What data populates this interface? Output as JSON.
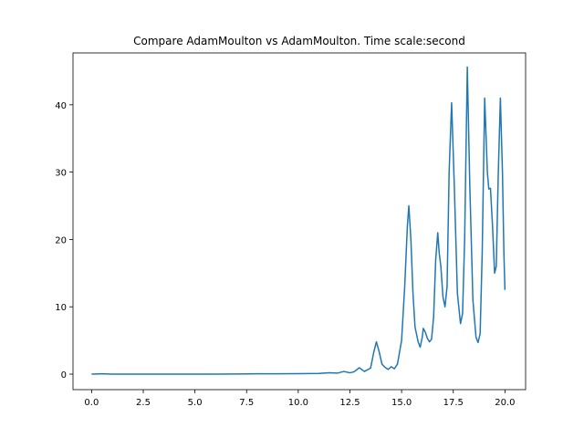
{
  "chart_data": {
    "type": "line",
    "title": "Compare AdamMoulton vs AdamMoulton. Time scale:second",
    "xlabel": "",
    "ylabel": "",
    "xlim": [
      -0.9,
      21.0
    ],
    "ylim": [
      -2.3,
      47.7
    ],
    "x_ticks": [
      0.0,
      2.5,
      5.0,
      7.5,
      10.0,
      12.5,
      15.0,
      17.5,
      20.0
    ],
    "x_tick_labels": [
      "0.0",
      "2.5",
      "5.0",
      "7.5",
      "10.0",
      "12.5",
      "15.0",
      "17.5",
      "20.0"
    ],
    "y_ticks": [
      0,
      10,
      20,
      30,
      40
    ],
    "y_tick_labels": [
      "0",
      "10",
      "20",
      "30",
      "40"
    ],
    "grid": false,
    "series": [
      {
        "color": "#1f77b4",
        "points": [
          [
            0.0,
            0.0
          ],
          [
            0.5,
            0.05
          ],
          [
            1.0,
            0.0
          ],
          [
            2.0,
            0.0
          ],
          [
            3.0,
            0.0
          ],
          [
            4.0,
            0.0
          ],
          [
            5.0,
            0.0
          ],
          [
            6.0,
            0.0
          ],
          [
            7.0,
            0.02
          ],
          [
            8.0,
            0.05
          ],
          [
            9.0,
            0.05
          ],
          [
            10.0,
            0.08
          ],
          [
            11.0,
            0.1
          ],
          [
            11.5,
            0.2
          ],
          [
            11.9,
            0.15
          ],
          [
            12.2,
            0.4
          ],
          [
            12.5,
            0.2
          ],
          [
            12.7,
            0.35
          ],
          [
            12.95,
            0.95
          ],
          [
            13.2,
            0.4
          ],
          [
            13.5,
            0.9
          ],
          [
            13.65,
            3.2
          ],
          [
            13.78,
            4.8
          ],
          [
            13.9,
            3.5
          ],
          [
            14.05,
            1.5
          ],
          [
            14.2,
            1.0
          ],
          [
            14.35,
            0.7
          ],
          [
            14.5,
            1.1
          ],
          [
            14.65,
            0.8
          ],
          [
            14.8,
            1.5
          ],
          [
            15.0,
            5.0
          ],
          [
            15.15,
            13.0
          ],
          [
            15.28,
            22.0
          ],
          [
            15.35,
            25.0
          ],
          [
            15.45,
            20.0
          ],
          [
            15.55,
            12.0
          ],
          [
            15.65,
            7.0
          ],
          [
            15.8,
            4.8
          ],
          [
            15.9,
            4.0
          ],
          [
            16.0,
            5.5
          ],
          [
            16.05,
            6.8
          ],
          [
            16.15,
            6.2
          ],
          [
            16.25,
            5.3
          ],
          [
            16.35,
            4.8
          ],
          [
            16.45,
            5.2
          ],
          [
            16.55,
            8.5
          ],
          [
            16.65,
            17.0
          ],
          [
            16.75,
            21.0
          ],
          [
            16.82,
            18.0
          ],
          [
            16.9,
            16.0
          ],
          [
            17.0,
            11.5
          ],
          [
            17.1,
            10.0
          ],
          [
            17.2,
            13.0
          ],
          [
            17.3,
            30.0
          ],
          [
            17.42,
            40.3
          ],
          [
            17.55,
            28.0
          ],
          [
            17.7,
            12.0
          ],
          [
            17.85,
            7.5
          ],
          [
            17.95,
            9.0
          ],
          [
            18.05,
            20.0
          ],
          [
            18.18,
            45.6
          ],
          [
            18.3,
            28.0
          ],
          [
            18.45,
            11.0
          ],
          [
            18.6,
            5.5
          ],
          [
            18.7,
            4.7
          ],
          [
            18.8,
            6.0
          ],
          [
            18.9,
            18.0
          ],
          [
            19.02,
            41.0
          ],
          [
            19.15,
            30.0
          ],
          [
            19.22,
            27.5
          ],
          [
            19.3,
            27.6
          ],
          [
            19.4,
            22.0
          ],
          [
            19.5,
            15.0
          ],
          [
            19.58,
            16.0
          ],
          [
            19.68,
            30.0
          ],
          [
            19.78,
            41.0
          ],
          [
            19.88,
            30.0
          ],
          [
            19.95,
            18.0
          ],
          [
            20.0,
            12.5
          ]
        ]
      }
    ]
  }
}
